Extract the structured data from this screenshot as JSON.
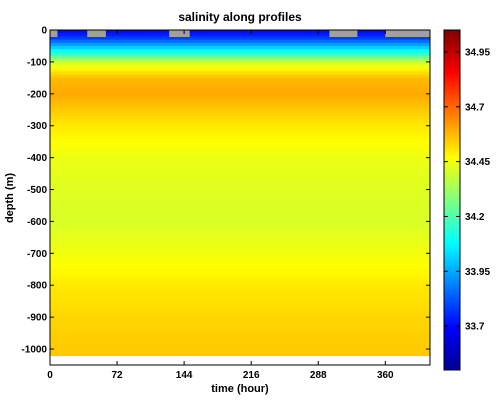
{
  "chart_data": {
    "type": "heatmap",
    "title": "salinity along profiles",
    "xlabel": "time (hour)",
    "ylabel": "depth (m)",
    "xlim": [
      0,
      408
    ],
    "ylim": [
      -1050,
      0
    ],
    "x_ticks": [
      0,
      72,
      144,
      216,
      288,
      360
    ],
    "y_ticks": [
      0,
      -100,
      -200,
      -300,
      -400,
      -500,
      -600,
      -700,
      -800,
      -900,
      -1000
    ],
    "colorbar": {
      "range": [
        33.5,
        35.05
      ],
      "ticks": [
        34.95,
        34.7,
        34.45,
        34.2,
        33.95,
        33.7
      ],
      "colormap": "jet"
    },
    "no_data_color": "#a0a0a0",
    "salinity_profile": {
      "depth": [
        0,
        -20,
        -40,
        -60,
        -80,
        -100,
        -150,
        -200,
        -250,
        -300,
        -400,
        -500,
        -600,
        -700,
        -800,
        -900,
        -1000
      ],
      "salinity": [
        33.7,
        33.75,
        33.9,
        34.05,
        34.2,
        34.4,
        34.57,
        34.6,
        34.55,
        34.5,
        34.44,
        34.42,
        34.41,
        34.45,
        34.5,
        34.53,
        34.55
      ]
    },
    "data_bottom_depth": -1020
  }
}
